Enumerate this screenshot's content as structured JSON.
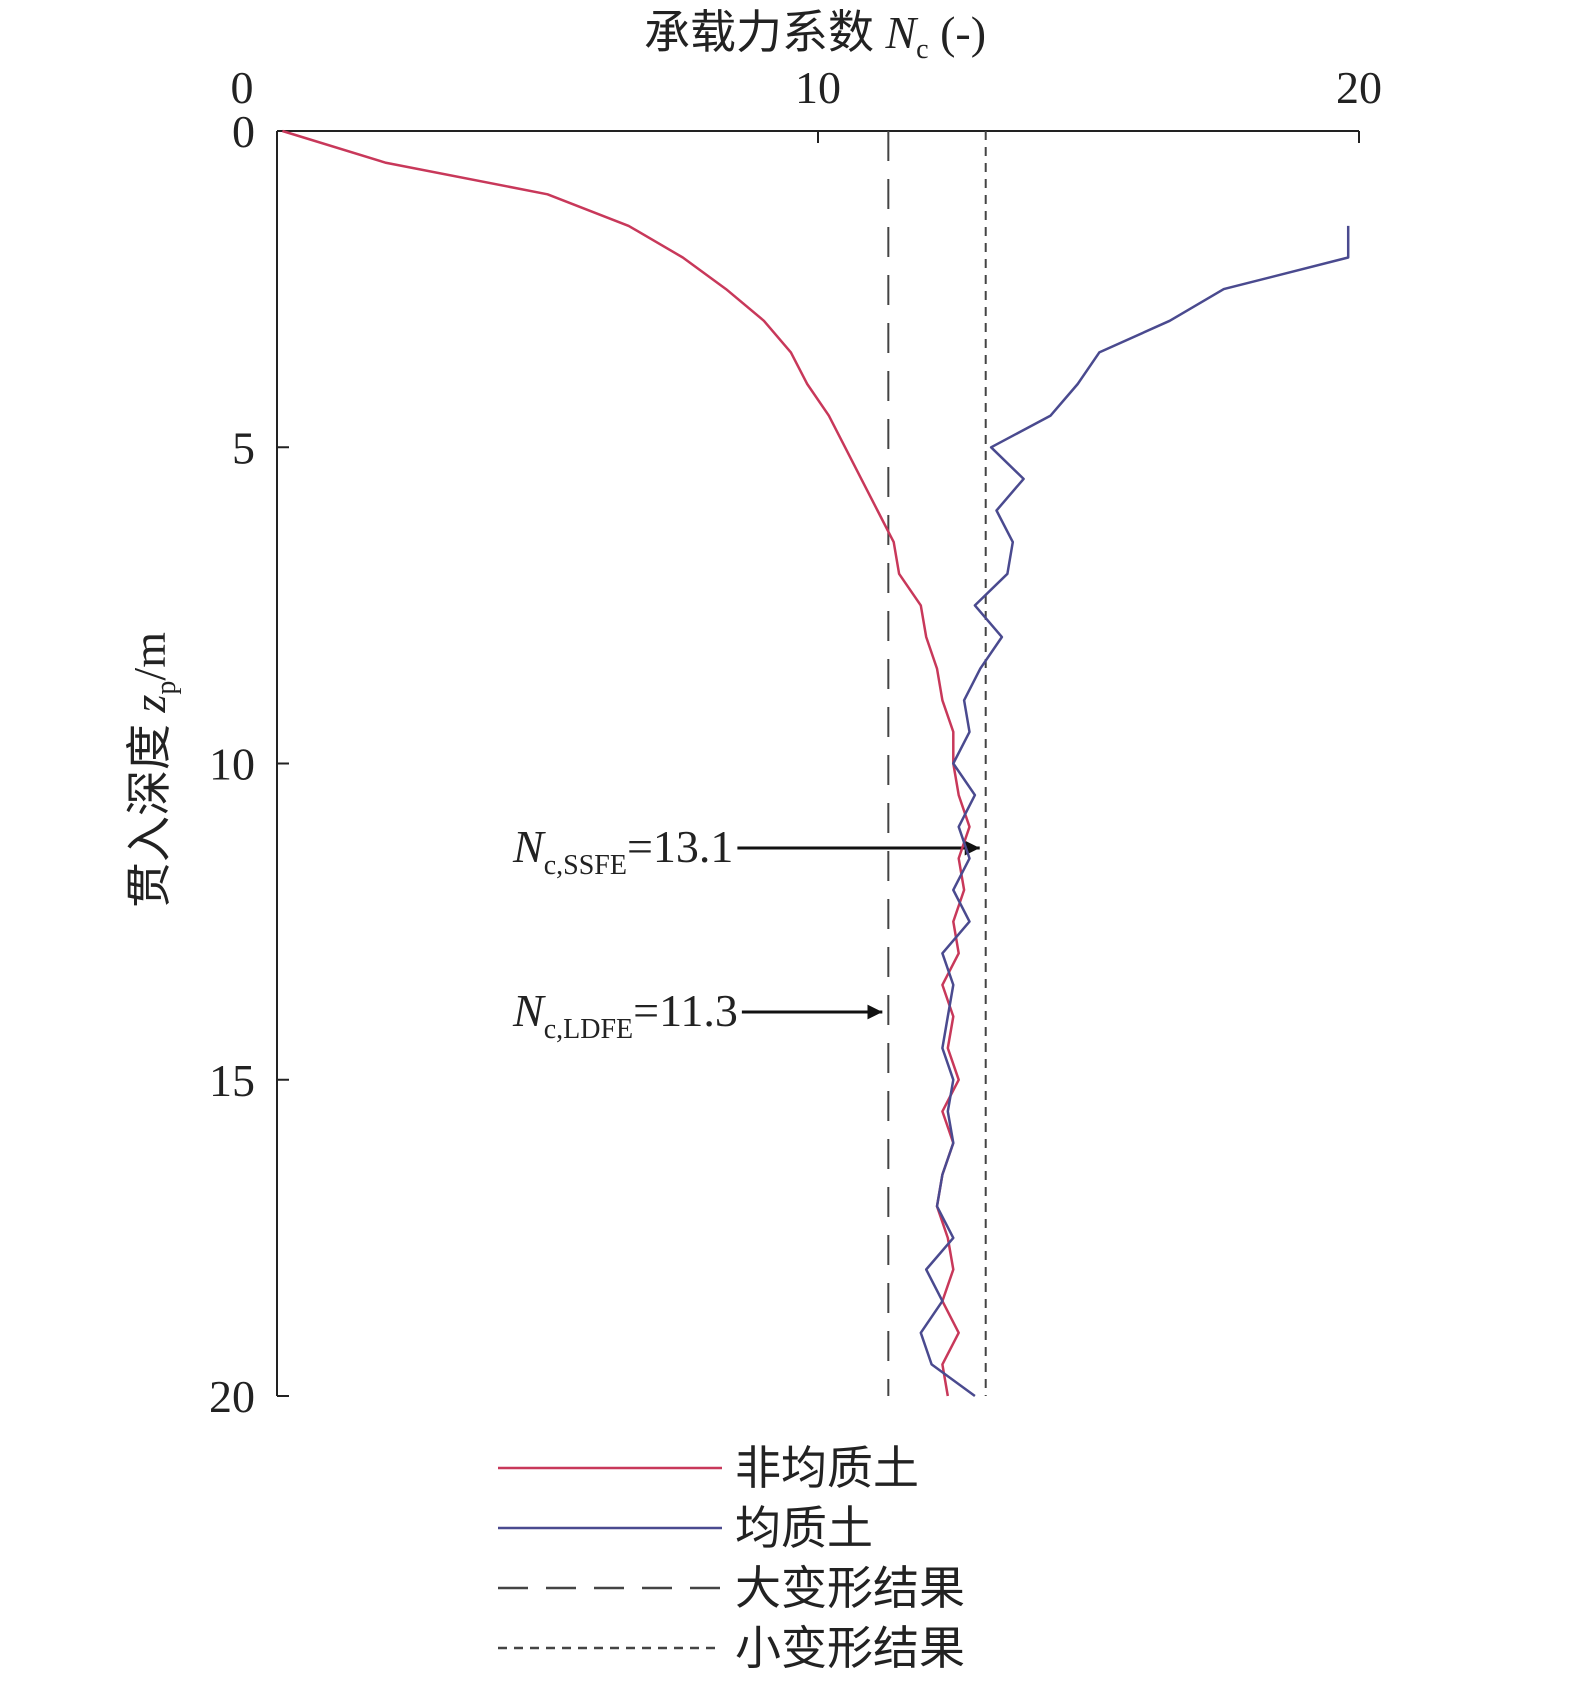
{
  "chart_data": {
    "type": "line",
    "title": {
      "prefix": "承载力系数 ",
      "symbol": "N",
      "subscript": "c",
      "suffix": " (-)"
    },
    "y_label": {
      "prefix": "贯入深度 ",
      "symbol": "z",
      "subscript": "p",
      "suffix": "/m"
    },
    "y": [
      0,
      0.5,
      1,
      1.5,
      2,
      2.5,
      3,
      3.5,
      4,
      4.5,
      5,
      5.5,
      6,
      6.5,
      7,
      7.5,
      8,
      8.5,
      9,
      9.5,
      10,
      10.5,
      11,
      11.5,
      12,
      12.5,
      13,
      13.5,
      14,
      14.5,
      15,
      15.5,
      16,
      16.5,
      17,
      17.5,
      18,
      18.5,
      19,
      19.5,
      20
    ],
    "series": [
      {
        "name": "非均质土",
        "color": "#c8385a",
        "values": [
          0.1,
          2,
          5,
          6.5,
          7.5,
          8.3,
          9,
          9.5,
          9.8,
          10.2,
          10.5,
          10.8,
          11.1,
          11.4,
          11.5,
          11.9,
          12.0,
          12.2,
          12.3,
          12.5,
          12.5,
          12.6,
          12.8,
          12.6,
          12.7,
          12.5,
          12.6,
          12.3,
          12.5,
          12.4,
          12.6,
          12.3,
          12.5,
          12.3,
          12.2,
          12.4,
          12.5,
          12.3,
          12.6,
          12.3,
          12.4
        ]
      },
      {
        "name": "均质土",
        "color": "#4a4a8f",
        "values": [
          null,
          null,
          null,
          19.8,
          19.8,
          17.5,
          16.5,
          15.2,
          14.8,
          14.3,
          13.2,
          13.8,
          13.3,
          13.6,
          13.5,
          12.9,
          13.4,
          13.0,
          12.7,
          12.8,
          12.5,
          12.9,
          12.6,
          12.8,
          12.5,
          12.8,
          12.3,
          12.5,
          12.4,
          12.3,
          12.5,
          12.4,
          12.5,
          12.3,
          12.2,
          12.5,
          12.0,
          12.3,
          11.9,
          12.1,
          12.9
        ]
      }
    ],
    "reference_lines": [
      {
        "name": "大变形结果",
        "value": 11.3,
        "dash": "long",
        "annotation": {
          "symbol": "N",
          "subscript": "c,LDFE",
          "text": "=11.3"
        }
      },
      {
        "name": "小变形结果",
        "value": 13.1,
        "dash": "short",
        "annotation": {
          "symbol": "N",
          "subscript": "c,SSFE",
          "text": "=13.1"
        }
      }
    ],
    "xlim": [
      0,
      20
    ],
    "xticks": [
      0,
      10,
      20
    ],
    "ylim": [
      0,
      20
    ],
    "yticks": [
      0,
      5,
      10,
      15,
      20
    ],
    "y_inverted": true,
    "x_axis_position": "top"
  }
}
